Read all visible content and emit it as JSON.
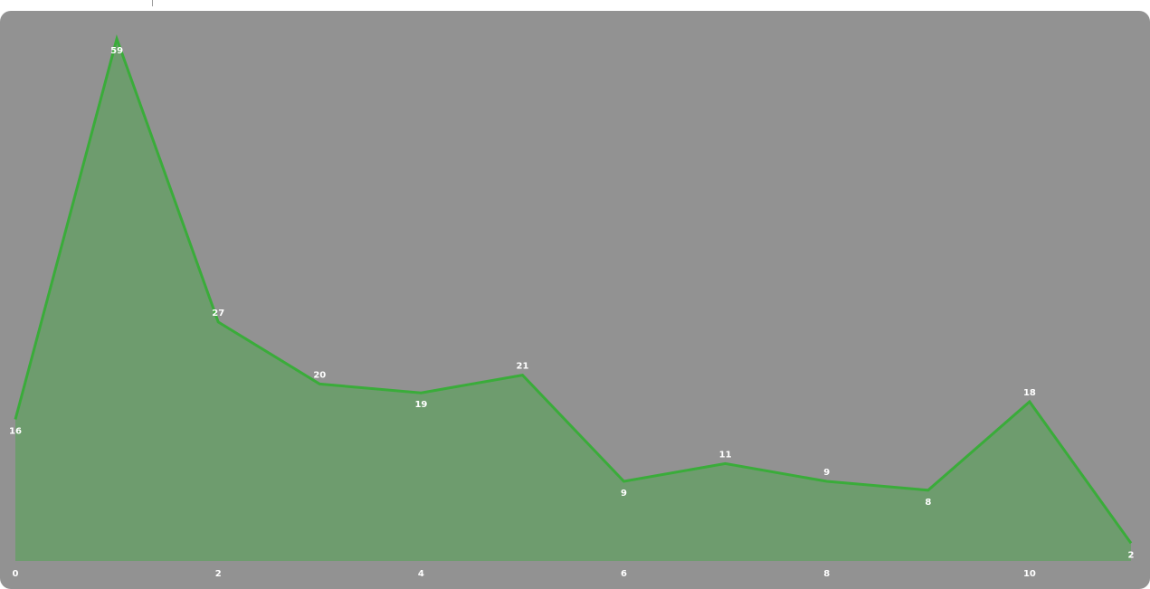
{
  "colors": {
    "panel_background": "#929292",
    "line": "#3aac3a",
    "area_fill": "#6e9c6e",
    "label": "#ffffff"
  },
  "chart_data": {
    "type": "area",
    "title": "",
    "xlabel": "",
    "ylabel": "",
    "x": [
      0,
      1,
      2,
      3,
      4,
      5,
      6,
      7,
      8,
      9,
      10,
      11
    ],
    "values": [
      16,
      59,
      27,
      20,
      19,
      21,
      9,
      11,
      9,
      8,
      18,
      2
    ],
    "label_position": [
      "below",
      "below",
      "above",
      "above",
      "below",
      "above",
      "below",
      "above",
      "above",
      "below",
      "above",
      "below"
    ],
    "x_ticks": [
      0,
      2,
      4,
      6,
      8,
      10
    ],
    "xlim": [
      0,
      11
    ],
    "ylim": [
      0,
      59
    ],
    "grid": false,
    "legend": "none"
  }
}
